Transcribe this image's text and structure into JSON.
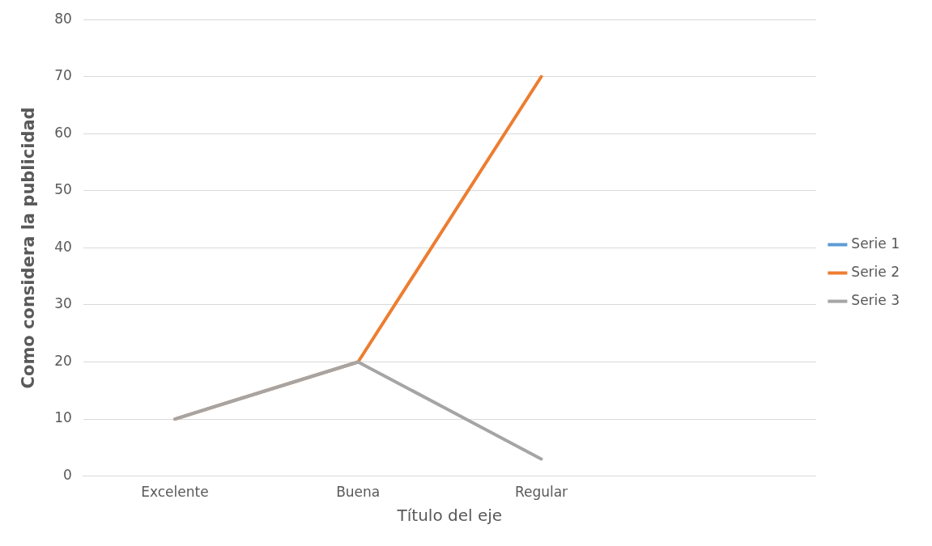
{
  "chart_data": {
    "type": "line",
    "xlabel": "Título del eje",
    "ylabel": "Como considera la publicidad",
    "categories": [
      "Excelente",
      "Buena",
      "Regular",
      null
    ],
    "series": [
      {
        "name": "Serie 1",
        "color": "#5b9bd5",
        "values": [
          null,
          null,
          null,
          null
        ]
      },
      {
        "name": "Serie 2",
        "color": "#ed7d31",
        "values": [
          10,
          20,
          70,
          null
        ]
      },
      {
        "name": "Serie 3",
        "color": "#a5a5a5",
        "values": [
          10,
          20,
          3,
          null
        ]
      }
    ],
    "ylim": [
      0,
      80
    ],
    "yticks": [
      0,
      10,
      20,
      30,
      40,
      50,
      60,
      70,
      80
    ],
    "grid": "y",
    "legend": "right",
    "marker": "none",
    "line_style": "solid"
  }
}
